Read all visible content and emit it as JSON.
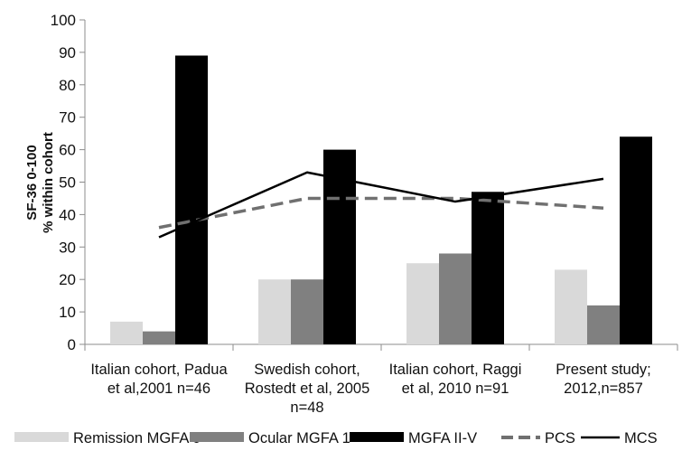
{
  "chart_data": {
    "type": "bar",
    "title": "",
    "xlabel": "",
    "ylabel": "SF-36 0-100",
    "ylabel2": "% within cohort",
    "ylim": [
      0,
      100
    ],
    "yticks": [
      0,
      10,
      20,
      30,
      40,
      50,
      60,
      70,
      80,
      90,
      100
    ],
    "grid": false,
    "legend_position": "bottom",
    "categories": [
      [
        "Italian cohort, Padua",
        "et al,2001 n=46"
      ],
      [
        "Swedish cohort,",
        "Rostedt et al, 2005",
        "n=48"
      ],
      [
        "Italian cohort, Raggi",
        "et al, 2010 n=91"
      ],
      [
        "Present study;",
        "2012,n=857"
      ]
    ],
    "series": [
      {
        "name": "Remission MGFA 0",
        "kind": "bar",
        "color": "#d9d9d9",
        "values": [
          7,
          20,
          25,
          23
        ]
      },
      {
        "name": "Ocular MGFA 1",
        "kind": "bar",
        "color": "#808080",
        "values": [
          4,
          20,
          28,
          12
        ]
      },
      {
        "name": "MGFA II-V",
        "kind": "bar",
        "color": "#000000",
        "values": [
          89,
          60,
          47,
          64
        ]
      },
      {
        "name": "PCS",
        "kind": "line",
        "style": "dashed",
        "color": "#707070",
        "values": [
          36,
          45,
          45,
          42
        ]
      },
      {
        "name": "MCS",
        "kind": "line",
        "style": "solid",
        "color": "#000000",
        "values": [
          33,
          53,
          44,
          51
        ]
      }
    ]
  }
}
